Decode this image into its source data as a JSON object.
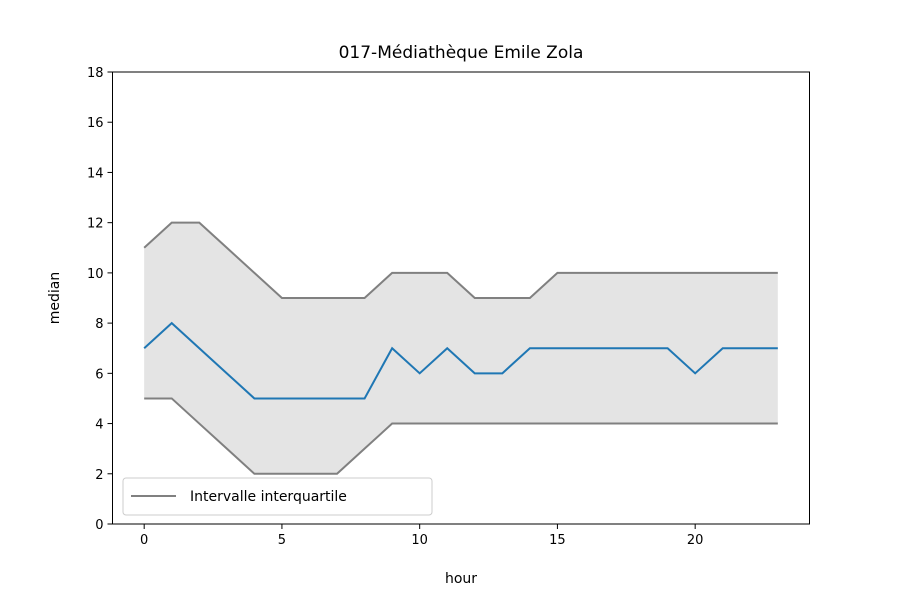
{
  "chart_data": {
    "type": "line",
    "title": "017-Médiathèque Emile Zola",
    "xlabel": "hour",
    "ylabel": "median",
    "xlim": [
      -1.15,
      24.15
    ],
    "ylim": [
      0,
      18
    ],
    "xticks": [
      0,
      5,
      10,
      15,
      20
    ],
    "yticks": [
      0,
      2,
      4,
      6,
      8,
      10,
      12,
      14,
      16,
      18
    ],
    "grid": false,
    "legend_position": "lower-left",
    "x": [
      0,
      1,
      2,
      3,
      4,
      5,
      6,
      7,
      8,
      9,
      10,
      11,
      12,
      13,
      14,
      15,
      16,
      17,
      18,
      19,
      20,
      21,
      22,
      23
    ],
    "series": [
      {
        "key": "median",
        "color": "#1f77b4",
        "values": [
          7,
          8,
          7,
          6,
          5,
          5,
          5,
          5,
          5,
          7,
          6,
          7,
          6,
          6,
          7,
          7,
          7,
          7,
          7,
          7,
          6,
          7,
          7,
          7
        ]
      },
      {
        "key": "q3",
        "color": "#808080",
        "values": [
          11,
          12,
          12,
          11,
          10,
          9,
          9,
          9,
          9,
          10,
          10,
          10,
          9,
          9,
          9,
          10,
          10,
          10,
          10,
          10,
          10,
          10,
          10,
          10
        ]
      },
      {
        "key": "q1",
        "color": "#808080",
        "values": [
          5,
          5,
          4,
          3,
          2,
          2,
          2,
          2,
          3,
          4,
          4,
          4,
          4,
          4,
          4,
          4,
          4,
          4,
          4,
          4,
          4,
          4,
          4,
          4
        ]
      }
    ],
    "band": {
      "color": "#e4e4e4"
    },
    "legend": [
      {
        "label": "Intervalle interquartile",
        "color": "#808080"
      }
    ]
  }
}
